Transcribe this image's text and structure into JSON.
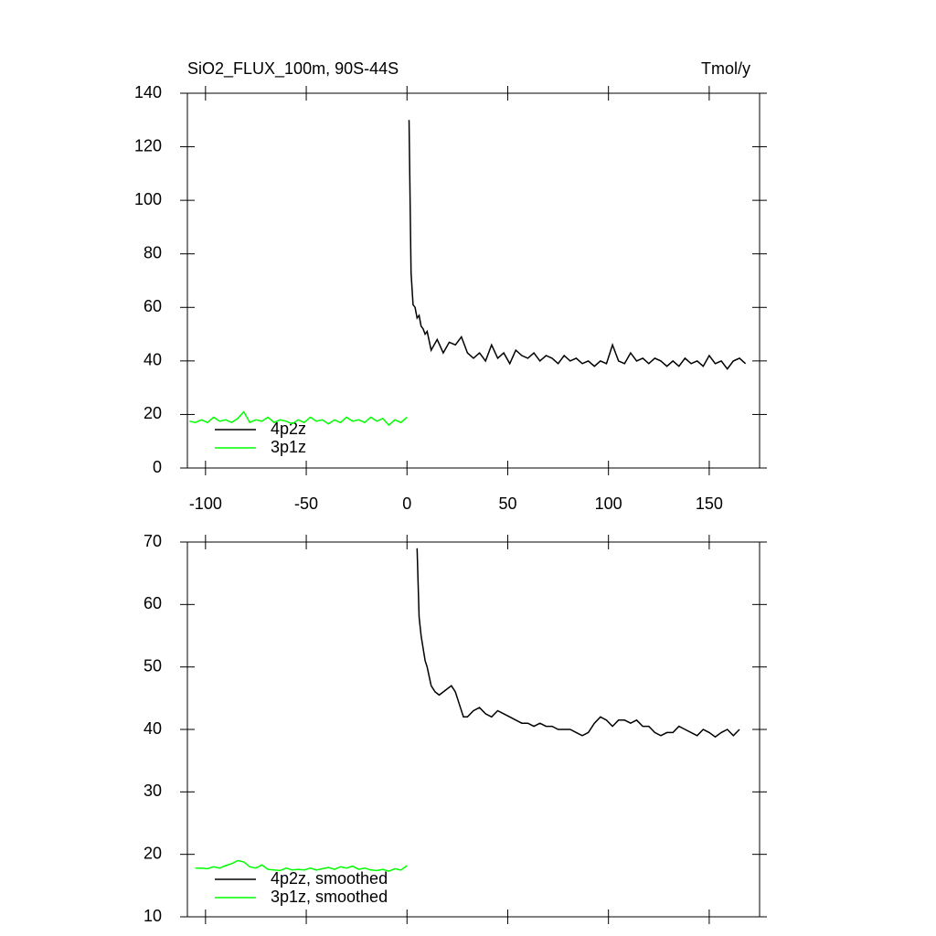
{
  "chart_data": [
    {
      "type": "line",
      "title": "SiO2_FLUX_100m, 90S-44S",
      "units": "Tmol/y",
      "xlim": [
        -109,
        175
      ],
      "xticks": [
        -100,
        -50,
        0,
        50,
        100,
        150
      ],
      "ylim": [
        0,
        140
      ],
      "yticks": [
        0,
        20,
        40,
        60,
        80,
        100,
        120,
        140
      ],
      "show_xtick_labels": true,
      "series": [
        {
          "name": "4p2z",
          "color": "#000000",
          "x": [
            1,
            2,
            3,
            4,
            5,
            6,
            7,
            8,
            9,
            10,
            12,
            15,
            18,
            21,
            24,
            27,
            30,
            33,
            36,
            39,
            42,
            45,
            48,
            51,
            54,
            57,
            60,
            63,
            66,
            69,
            72,
            75,
            78,
            81,
            84,
            87,
            90,
            93,
            96,
            99,
            102,
            105,
            108,
            111,
            114,
            117,
            120,
            123,
            126,
            129,
            132,
            135,
            138,
            141,
            144,
            147,
            150,
            153,
            156,
            159,
            162,
            165,
            168
          ],
          "values": [
            130,
            73,
            61,
            60,
            56,
            57,
            53,
            52,
            50,
            51,
            44,
            48,
            43,
            47,
            46,
            49,
            43,
            41,
            43,
            40,
            46,
            41,
            43,
            39,
            44,
            42,
            41,
            43,
            40,
            42,
            41,
            39,
            42,
            40,
            41,
            39,
            40,
            38,
            40,
            39,
            46,
            40,
            39,
            43,
            40,
            41,
            39,
            41,
            40,
            38,
            40,
            38,
            41,
            39,
            40,
            38,
            42,
            39,
            40,
            37,
            40,
            41,
            39
          ]
        },
        {
          "name": "3p1z",
          "color": "#00ff00",
          "x": [
            -108,
            -105,
            -102,
            -99,
            -96,
            -93,
            -90,
            -87,
            -84,
            -81,
            -78,
            -75,
            -72,
            -69,
            -66,
            -63,
            -60,
            -57,
            -54,
            -51,
            -48,
            -45,
            -42,
            -39,
            -36,
            -33,
            -30,
            -27,
            -24,
            -21,
            -18,
            -15,
            -12,
            -9,
            -6,
            -3,
            0
          ],
          "values": [
            17.5,
            17,
            18,
            17,
            19,
            17.5,
            18,
            17,
            18.5,
            21,
            17,
            18,
            17.5,
            19,
            17,
            18,
            17.5,
            16.5,
            18,
            17,
            19,
            17.5,
            18,
            16.5,
            18,
            17,
            19,
            17.5,
            18,
            17,
            19,
            17.5,
            18.5,
            16,
            18,
            17,
            19
          ]
        }
      ]
    },
    {
      "type": "line",
      "xlim": [
        -109,
        175
      ],
      "xticks": [
        -100,
        -50,
        0,
        50,
        100,
        150
      ],
      "ylim": [
        10,
        70
      ],
      "yticks": [
        10,
        20,
        30,
        40,
        50,
        60,
        70
      ],
      "show_xtick_labels": false,
      "series": [
        {
          "name": "4p2z, smoothed",
          "color": "#000000",
          "x": [
            5,
            6,
            7,
            8,
            9,
            10,
            12,
            14,
            16,
            18,
            20,
            22,
            24,
            26,
            28,
            30,
            33,
            36,
            39,
            42,
            45,
            48,
            51,
            54,
            57,
            60,
            63,
            66,
            69,
            72,
            75,
            78,
            81,
            84,
            87,
            90,
            93,
            96,
            99,
            102,
            105,
            108,
            111,
            114,
            117,
            120,
            123,
            126,
            129,
            132,
            135,
            138,
            141,
            144,
            147,
            150,
            153,
            156,
            159,
            162,
            165
          ],
          "values": [
            69,
            58,
            55,
            53,
            51,
            50,
            47,
            46,
            45.5,
            46,
            46.5,
            47,
            46,
            44,
            42,
            42,
            43,
            43.5,
            42.5,
            42,
            43,
            42.5,
            42,
            41.5,
            41,
            41,
            40.5,
            41,
            40.5,
            40.5,
            40,
            40,
            40,
            39.5,
            39,
            39.5,
            41,
            42,
            41.5,
            40.5,
            41.5,
            41.5,
            41,
            41.5,
            40.5,
            40.5,
            39.5,
            39,
            39.5,
            39.5,
            40.5,
            40,
            39.5,
            39,
            40,
            39.5,
            38.8,
            39.5,
            40,
            39,
            40
          ]
        },
        {
          "name": "3p1z, smoothed",
          "color": "#00ff00",
          "x": [
            -105,
            -102,
            -99,
            -96,
            -93,
            -90,
            -87,
            -84,
            -81,
            -78,
            -75,
            -72,
            -69,
            -66,
            -63,
            -60,
            -57,
            -54,
            -51,
            -48,
            -45,
            -42,
            -39,
            -36,
            -33,
            -30,
            -27,
            -24,
            -21,
            -18,
            -15,
            -12,
            -9,
            -6,
            -3,
            0
          ],
          "values": [
            17.8,
            17.8,
            17.7,
            18,
            17.8,
            18.2,
            18.5,
            19,
            18.8,
            18,
            17.8,
            18.3,
            17.6,
            17.5,
            17.4,
            17.8,
            17.5,
            17.6,
            17.5,
            17.8,
            17.5,
            17.7,
            17.9,
            17.6,
            18,
            17.8,
            18.1,
            17.6,
            17.8,
            17.5,
            17.4,
            17.6,
            17.3,
            17.7,
            17.5,
            18.2
          ]
        }
      ]
    }
  ]
}
